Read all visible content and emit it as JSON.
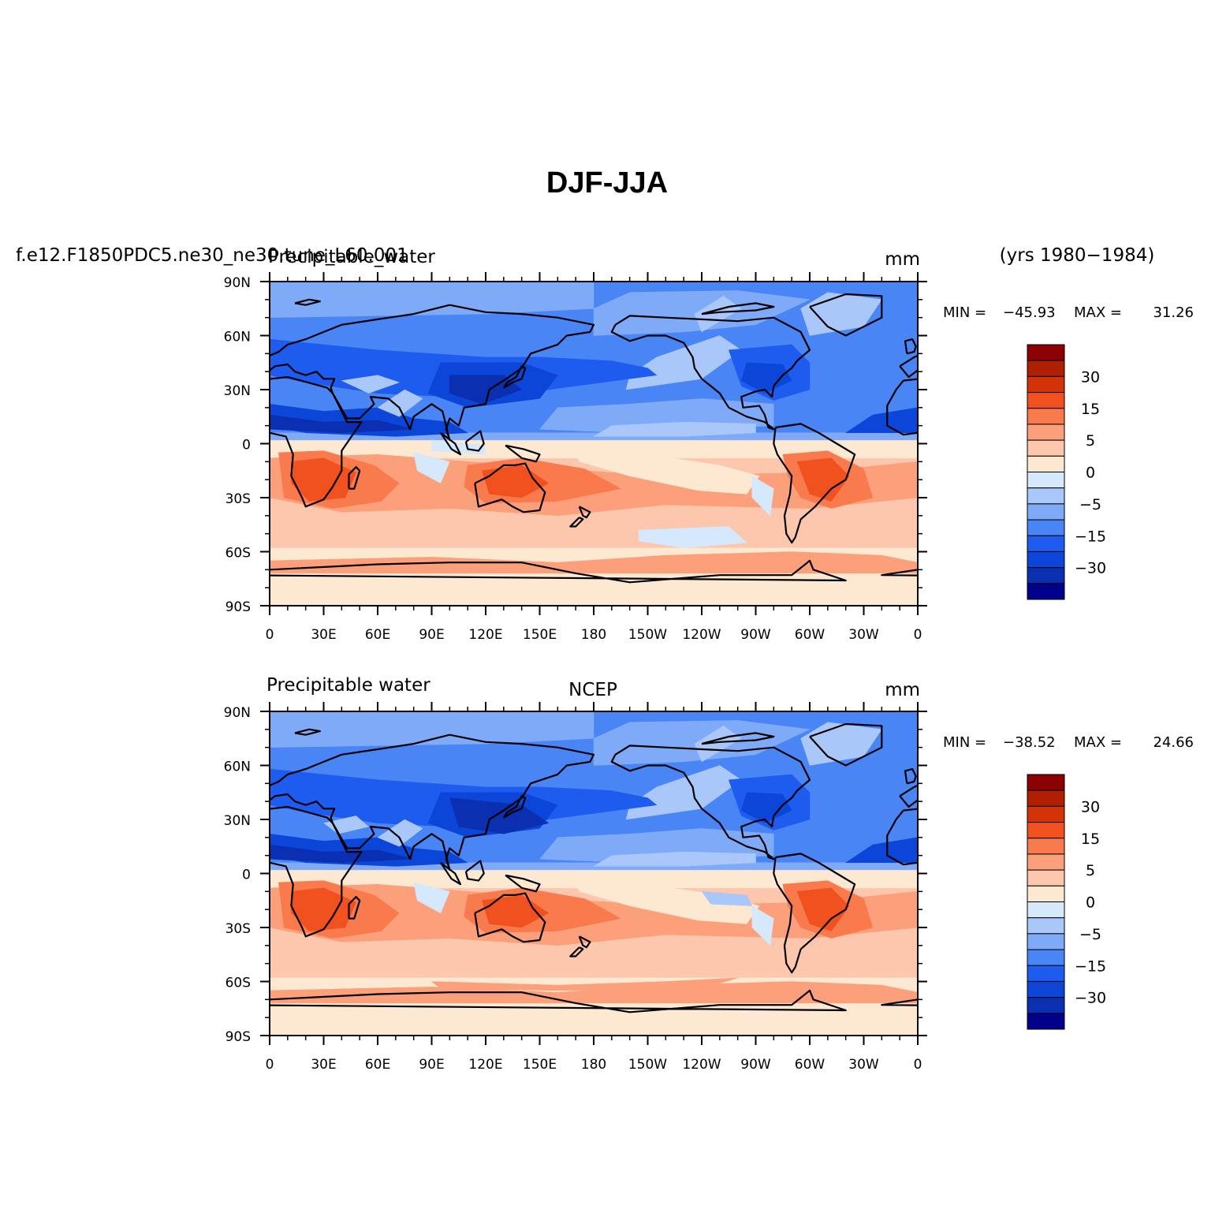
{
  "figure": {
    "title": "DJF-JJA",
    "years": "(yrs 1980−1984)"
  },
  "colors": {
    "levels": [
      "#00008b",
      "#0a2fb0",
      "#0c46d8",
      "#1e5cf0",
      "#4a85f5",
      "#7faaf8",
      "#aac7fa",
      "#d5e8fc",
      "#fde8d2",
      "#fcc7ad",
      "#fba07b",
      "#f97a4c",
      "#f0511f",
      "#d43308",
      "#b01f00",
      "#8b0000"
    ]
  },
  "panels": [
    {
      "left_title": "f.e12.F1850PDC5.ne30_ne30.tune_L60.001",
      "center_title": "Precipitable_water",
      "units": "mm",
      "stats": {
        "min_label": "MIN =",
        "min": "−45.93",
        "max_label": "MAX =",
        "max": "31.26"
      },
      "chart_data": {
        "type": "heatmap",
        "description_type": "map",
        "xlim": [
          0,
          360
        ],
        "ylim": [
          -90,
          90
        ],
        "colorbar_labels": [
          "30",
          "15",
          "5",
          "0",
          "−5",
          "−15",
          "−30"
        ],
        "x_ticks": [
          "0",
          "30E",
          "60E",
          "90E",
          "120E",
          "150E",
          "180",
          "150W",
          "120W",
          "90W",
          "60W",
          "30W",
          "0"
        ],
        "y_ticks": [
          "90N",
          "60N",
          "30N",
          "0",
          "30S",
          "60S",
          "90S"
        ]
      }
    },
    {
      "left_title": "Precipitable water",
      "center_title": "NCEP",
      "units": "mm",
      "stats": {
        "min_label": "MIN =",
        "min": "−38.52",
        "max_label": "MAX =",
        "max": "24.66"
      },
      "chart_data": {
        "type": "heatmap",
        "description_type": "map",
        "xlim": [
          0,
          360
        ],
        "ylim": [
          -90,
          90
        ],
        "colorbar_labels": [
          "30",
          "15",
          "5",
          "0",
          "−5",
          "−15",
          "−30"
        ],
        "x_ticks": [
          "0",
          "30E",
          "60E",
          "90E",
          "120E",
          "150E",
          "180",
          "150W",
          "120W",
          "90W",
          "60W",
          "30W",
          "0"
        ],
        "y_ticks": [
          "90N",
          "60N",
          "30N",
          "0",
          "30S",
          "60S",
          "90S"
        ]
      }
    }
  ]
}
